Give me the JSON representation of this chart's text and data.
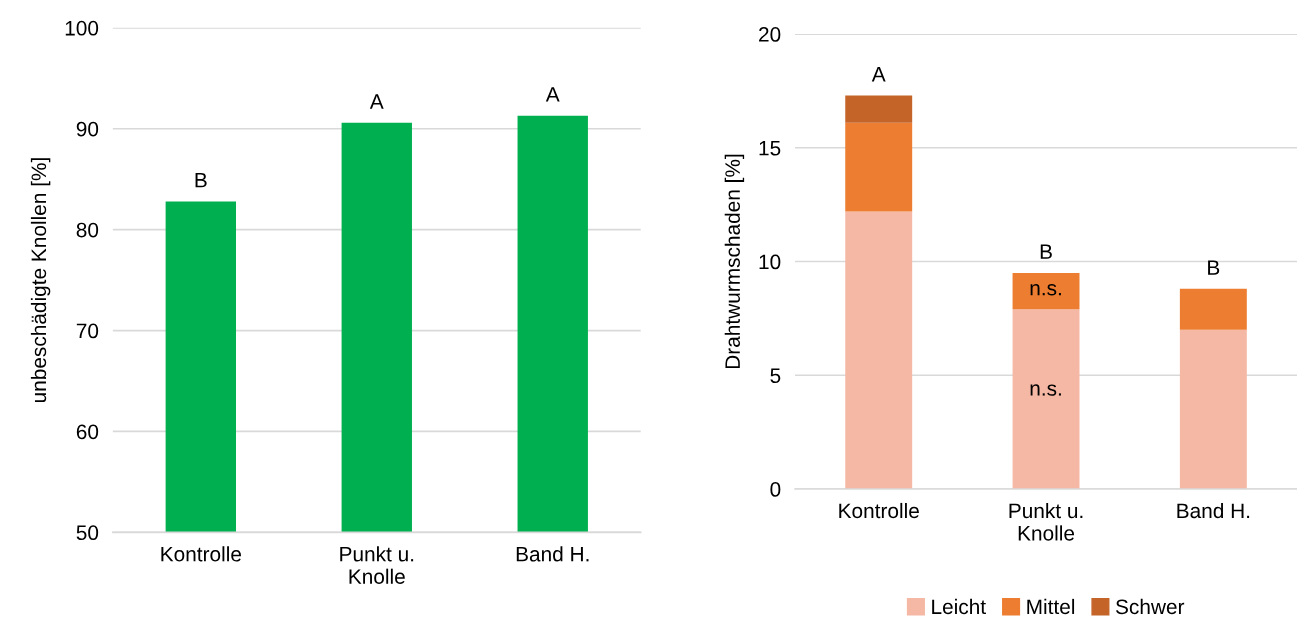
{
  "chart_data": [
    {
      "type": "bar",
      "ylabel": "unbeschädigte Knollen [%]",
      "categories": [
        "Kontrolle",
        "Punkt u.\nKnolle",
        "Band H."
      ],
      "series": [
        {
          "color": "#00b050",
          "values": [
            82.8,
            90.6,
            91.3
          ]
        }
      ],
      "ylim": [
        50,
        100
      ],
      "yticks": [
        50,
        60,
        70,
        80,
        90,
        100
      ],
      "grid": "y",
      "legend": false,
      "annotations": [
        {
          "text": "B",
          "x": "Kontrolle",
          "y": 82.8
        },
        {
          "text": "A",
          "x": "Punkt u.\nKnolle",
          "y": 90.6
        },
        {
          "text": "A",
          "x": "Band H.",
          "y": 91.3
        }
      ]
    },
    {
      "type": "bar",
      "stacked": true,
      "ylabel": "Drahtwurmschaden [%]",
      "categories": [
        "Kontrolle",
        "Punkt u.\nKnolle",
        "Band H."
      ],
      "series": [
        {
          "name": "Leicht",
          "color": "#f4b8a4",
          "values": [
            12.2,
            7.9,
            7.0
          ]
        },
        {
          "name": "Mittel",
          "color": "#ed7d31",
          "values": [
            3.9,
            1.6,
            1.8
          ]
        },
        {
          "name": "Schwer",
          "color": "#c46428",
          "values": [
            1.2,
            0,
            0
          ]
        }
      ],
      "ylim": [
        0,
        20
      ],
      "yticks": [
        0,
        5,
        10,
        15,
        20
      ],
      "grid": "y",
      "legend": "bottom",
      "annotations": [
        {
          "text": "A",
          "x": "Kontrolle",
          "y": 17.3
        },
        {
          "text": "B",
          "x": "Punkt u.\nKnolle",
          "y": 9.5
        },
        {
          "text": "n.s.",
          "x": "Punkt u.\nKnolle",
          "y": 7.9
        },
        "n.s.",
        {
          "text": "B",
          "x": "Band H.",
          "y": 8.8
        }
      ]
    }
  ]
}
